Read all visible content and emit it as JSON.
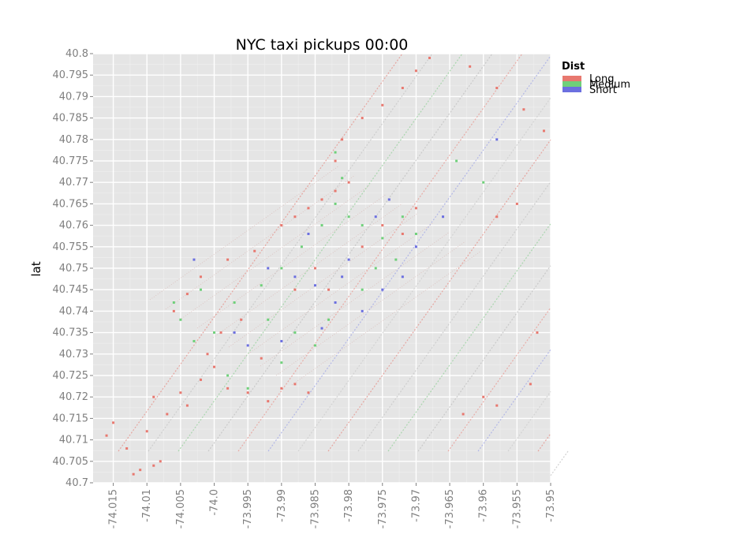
{
  "chart_data": {
    "type": "scatter",
    "title": "NYC taxi pickups 00:00",
    "xlabel": "",
    "ylabel": "lat",
    "xlim": [
      -74.018,
      -73.95
    ],
    "ylim": [
      40.7,
      40.8
    ],
    "x_ticks": [
      "-74.015",
      "-74.01",
      "-74.005",
      "-74.0",
      "-73.995",
      "-73.99",
      "-73.985",
      "-73.98",
      "-73.975",
      "-73.97",
      "-73.965",
      "-73.96",
      "-73.955",
      "-73.95"
    ],
    "x_tick_values": [
      -74.015,
      -74.01,
      -74.005,
      -74.0,
      -73.995,
      -73.99,
      -73.985,
      -73.98,
      -73.975,
      -73.97,
      -73.965,
      -73.96,
      -73.955,
      -73.95
    ],
    "y_ticks": [
      "40.7",
      "40.705",
      "40.71",
      "40.715",
      "40.72",
      "40.725",
      "40.73",
      "40.735",
      "40.74",
      "40.745",
      "40.75",
      "40.755",
      "40.76",
      "40.765",
      "40.77",
      "40.775",
      "40.78",
      "40.785",
      "40.79",
      "40.795",
      "40.8"
    ],
    "y_tick_values": [
      40.7,
      40.705,
      40.71,
      40.715,
      40.72,
      40.725,
      40.73,
      40.735,
      40.74,
      40.745,
      40.75,
      40.755,
      40.76,
      40.765,
      40.77,
      40.775,
      40.78,
      40.785,
      40.79,
      40.795,
      40.8
    ],
    "grid": true,
    "legend": {
      "title": "Dist",
      "placement": "top-right",
      "entries": [
        {
          "label": "Long",
          "color": "#e8786f"
        },
        {
          "label": "Medium",
          "color": "#6fd07a"
        },
        {
          "label": "Short",
          "color": "#6b6fe0"
        }
      ]
    },
    "series": [
      {
        "name": "Long",
        "color": "#e8786f",
        "points": [
          [
            -74.012,
            40.702
          ],
          [
            -74.011,
            40.703
          ],
          [
            -74.009,
            40.704
          ],
          [
            -74.008,
            40.705
          ],
          [
            -74.013,
            40.708
          ],
          [
            -74.016,
            40.711
          ],
          [
            -74.015,
            40.714
          ],
          [
            -74.01,
            40.712
          ],
          [
            -74.007,
            40.716
          ],
          [
            -74.009,
            40.72
          ],
          [
            -74.005,
            40.721
          ],
          [
            -74.004,
            40.718
          ],
          [
            -74.002,
            40.724
          ],
          [
            -74.0,
            40.727
          ],
          [
            -73.998,
            40.722
          ],
          [
            -73.995,
            40.721
          ],
          [
            -73.992,
            40.719
          ],
          [
            -73.99,
            40.722
          ],
          [
            -73.988,
            40.723
          ],
          [
            -73.986,
            40.721
          ],
          [
            -74.006,
            40.74
          ],
          [
            -74.004,
            40.744
          ],
          [
            -74.002,
            40.748
          ],
          [
            -73.998,
            40.752
          ],
          [
            -73.994,
            40.754
          ],
          [
            -73.99,
            40.76
          ],
          [
            -73.988,
            40.762
          ],
          [
            -73.986,
            40.764
          ],
          [
            -73.984,
            40.766
          ],
          [
            -73.982,
            40.768
          ],
          [
            -73.98,
            40.77
          ],
          [
            -73.982,
            40.775
          ],
          [
            -73.981,
            40.78
          ],
          [
            -73.978,
            40.785
          ],
          [
            -73.975,
            40.788
          ],
          [
            -73.972,
            40.792
          ],
          [
            -73.97,
            40.796
          ],
          [
            -73.968,
            40.799
          ],
          [
            -73.962,
            40.797
          ],
          [
            -73.958,
            40.792
          ],
          [
            -73.954,
            40.787
          ],
          [
            -73.951,
            40.782
          ],
          [
            -73.955,
            40.765
          ],
          [
            -73.958,
            40.762
          ],
          [
            -73.96,
            40.72
          ],
          [
            -73.958,
            40.718
          ],
          [
            -73.963,
            40.716
          ],
          [
            -73.953,
            40.723
          ],
          [
            -73.952,
            40.735
          ],
          [
            -73.975,
            40.76
          ],
          [
            -73.972,
            40.758
          ],
          [
            -73.97,
            40.764
          ],
          [
            -73.985,
            40.75
          ],
          [
            -73.983,
            40.745
          ],
          [
            -73.996,
            40.738
          ],
          [
            -73.999,
            40.735
          ],
          [
            -74.001,
            40.73
          ],
          [
            -73.993,
            40.729
          ],
          [
            -73.988,
            40.745
          ],
          [
            -73.978,
            40.755
          ]
        ]
      },
      {
        "name": "Medium",
        "color": "#6fd07a",
        "points": [
          [
            -74.006,
            40.742
          ],
          [
            -74.005,
            40.738
          ],
          [
            -74.003,
            40.733
          ],
          [
            -74.0,
            40.735
          ],
          [
            -73.997,
            40.742
          ],
          [
            -73.993,
            40.746
          ],
          [
            -73.99,
            40.75
          ],
          [
            -73.987,
            40.755
          ],
          [
            -73.984,
            40.76
          ],
          [
            -73.982,
            40.765
          ],
          [
            -73.98,
            40.762
          ],
          [
            -73.978,
            40.76
          ],
          [
            -73.975,
            40.757
          ],
          [
            -73.972,
            40.762
          ],
          [
            -73.97,
            40.758
          ],
          [
            -73.988,
            40.735
          ],
          [
            -73.985,
            40.732
          ],
          [
            -73.983,
            40.738
          ],
          [
            -73.995,
            40.722
          ],
          [
            -73.99,
            40.728
          ],
          [
            -73.978,
            40.745
          ],
          [
            -73.976,
            40.75
          ],
          [
            -73.981,
            40.771
          ],
          [
            -73.982,
            40.777
          ],
          [
            -73.964,
            40.775
          ],
          [
            -73.96,
            40.77
          ],
          [
            -73.998,
            40.725
          ],
          [
            -74.002,
            40.745
          ],
          [
            -73.992,
            40.738
          ],
          [
            -73.973,
            40.752
          ]
        ]
      },
      {
        "name": "Short",
        "color": "#6b6fe0",
        "points": [
          [
            -73.992,
            40.75
          ],
          [
            -73.988,
            40.748
          ],
          [
            -73.985,
            40.746
          ],
          [
            -73.982,
            40.742
          ],
          [
            -73.978,
            40.74
          ],
          [
            -73.975,
            40.745
          ],
          [
            -73.972,
            40.748
          ],
          [
            -73.98,
            40.752
          ],
          [
            -73.99,
            40.733
          ],
          [
            -73.995,
            40.732
          ],
          [
            -74.003,
            40.752
          ],
          [
            -73.958,
            40.78
          ],
          [
            -73.976,
            40.762
          ],
          [
            -73.97,
            40.755
          ],
          [
            -73.986,
            40.758
          ],
          [
            -73.984,
            40.736
          ],
          [
            -73.974,
            40.766
          ],
          [
            -73.966,
            40.762
          ],
          [
            -73.997,
            40.735
          ],
          [
            -73.981,
            40.748
          ]
        ]
      }
    ]
  }
}
